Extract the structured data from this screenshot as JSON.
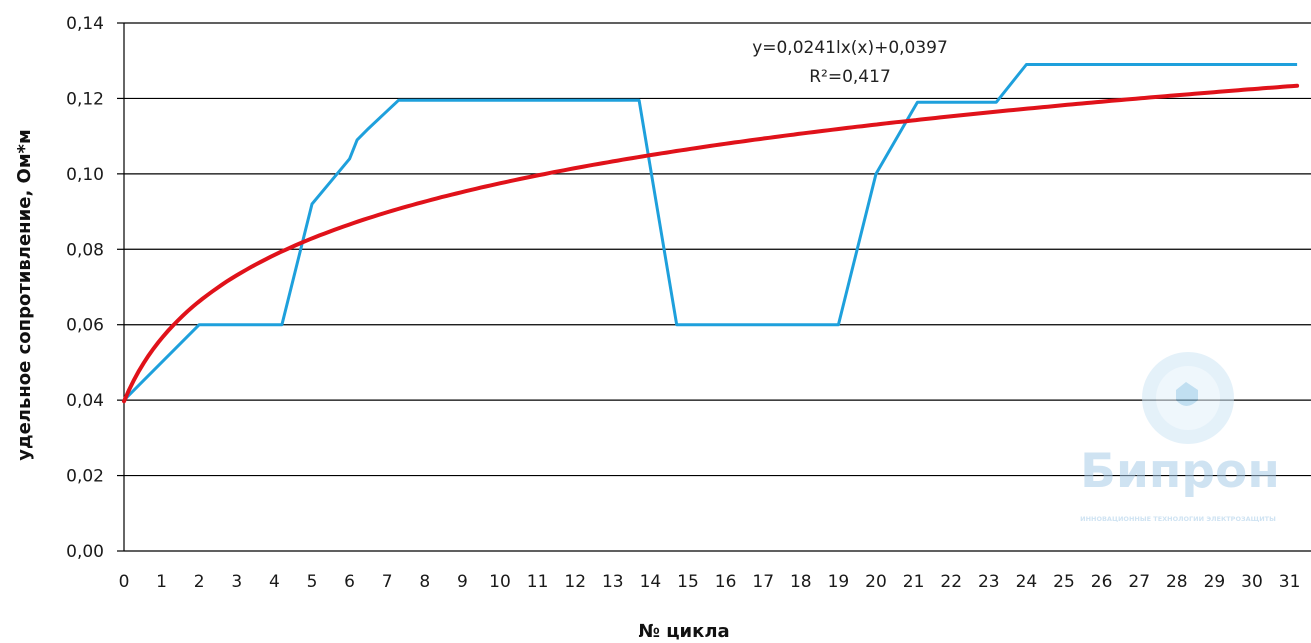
{
  "chart_data": {
    "type": "line",
    "title": "",
    "xlabel": "№ цикла",
    "ylabel": "удельное сопротивление, Ом*м",
    "xlim": [
      0,
      31
    ],
    "ylim": [
      0,
      0.14
    ],
    "x_ticks": [
      "0",
      "1",
      "2",
      "3",
      "4",
      "5",
      "6",
      "7",
      "8",
      "9",
      "10",
      "11",
      "12",
      "13",
      "14",
      "15",
      "16",
      "17",
      "18",
      "19",
      "20",
      "21",
      "22",
      "23",
      "24",
      "25",
      "26",
      "27",
      "28",
      "29",
      "30",
      "31"
    ],
    "y_ticks": [
      "0,00",
      "0,02",
      "0,04",
      "0,06",
      "0,08",
      "0,10",
      "0,12",
      "0,14"
    ],
    "grid": "horizontal",
    "series": [
      {
        "color": "#1ea0dc",
        "x": [
          0,
          2,
          4.2,
          5,
          5.5,
          6,
          6.2,
          6.5,
          7.3,
          13.7,
          14.7,
          19,
          20,
          21.1,
          23.2,
          24,
          31.2
        ],
        "y": [
          0.04,
          0.06,
          0.06,
          0.092,
          0.098,
          0.104,
          0.109,
          0.112,
          0.1195,
          0.1195,
          0.06,
          0.06,
          0.1,
          0.119,
          0.119,
          0.129,
          0.129
        ]
      },
      {
        "color": "#e0121a",
        "trendline": "logarithmic",
        "equation": {
          "a": 0.0241,
          "b": 0.0397
        },
        "x_range": [
          0,
          31.2
        ],
        "y_start": 0.04
      }
    ],
    "annotation": {
      "equation_text": "y=0,0241lx(x)+0,0397",
      "r2_text": "R²=0,417"
    }
  },
  "watermark": {
    "brand": "Бипрон",
    "tagline": "ИННОВАЦИОННЫЕ ТЕХНОЛОГИИ ЭЛЕКТРОЗАЩИТЫ"
  }
}
